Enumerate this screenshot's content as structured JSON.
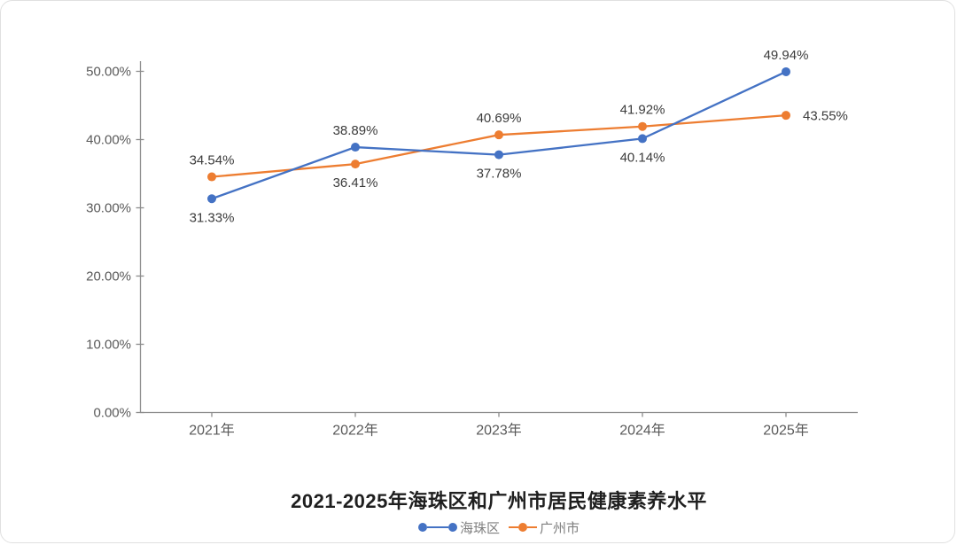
{
  "chart_data": {
    "type": "line",
    "title": "2021-2025年海珠区和广州市居民健康素养水平",
    "categories": [
      "2021年",
      "2022年",
      "2023年",
      "2024年",
      "2025年"
    ],
    "series": [
      {
        "name": "海珠区",
        "color": "#4472C4",
        "values": [
          31.33,
          38.89,
          37.78,
          40.14,
          49.94
        ],
        "data_labels": [
          "31.33%",
          "38.89%",
          "37.78%",
          "40.14%",
          "49.94%"
        ],
        "label_positions": [
          "below",
          "above",
          "below",
          "below",
          "above"
        ]
      },
      {
        "name": "广州市",
        "color": "#ED7D31",
        "values": [
          34.54,
          36.41,
          40.69,
          41.92,
          43.55
        ],
        "data_labels": [
          "34.54%",
          "36.41%",
          "40.69%",
          "41.92%",
          "43.55%"
        ],
        "label_positions": [
          "above",
          "below",
          "above",
          "above",
          "right"
        ]
      }
    ],
    "y_axis": {
      "tick_labels": [
        "0.00%",
        "10.00%",
        "20.00%",
        "30.00%",
        "40.00%",
        "50.00%"
      ],
      "tick_values": [
        0,
        10,
        20,
        30,
        40,
        50
      ],
      "min": 0,
      "max": 50
    },
    "x_axis": {
      "label": ""
    },
    "legend": {
      "position": "bottom",
      "entries": [
        "海珠区",
        "广州市"
      ]
    },
    "grid": false
  },
  "colors": {
    "series_blue": "#4472C4",
    "series_orange": "#ED7D31",
    "axis_line": "#8c8c8c",
    "axis_label": "#595959",
    "data_label": "#3b3b3b",
    "title_text": "#1f1f1f",
    "legend_text": "#7f7f7f"
  }
}
